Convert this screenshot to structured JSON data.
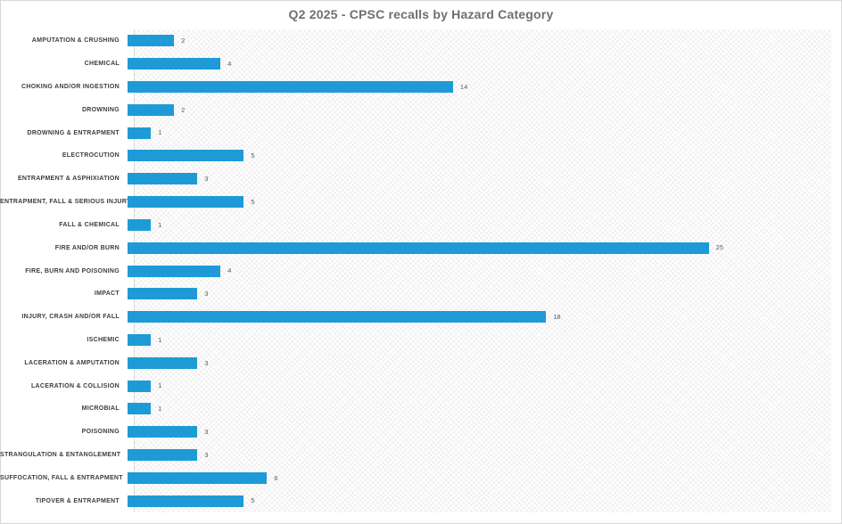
{
  "title": "Q2 2025 - CPSC recalls by Hazard Category",
  "colors": {
    "bar": "#1E9BD7",
    "title_text": "#6F6F6F",
    "axis_line": "#D9D9D9",
    "category_text": "#3D3D3D",
    "value_text": "#595959"
  },
  "chart_data": {
    "type": "bar",
    "orientation": "horizontal",
    "title": "Q2 2025 - CPSC recalls by Hazard Category",
    "xlabel": "",
    "ylabel": "",
    "xlim": [
      0,
      30
    ],
    "grid": false,
    "legend": false,
    "data_labels": true,
    "categories": [
      "AMPUTATION & CRUSHING",
      "CHEMICAL",
      "CHOKING AND/OR INGESTION",
      "DROWNING",
      "DROWNING & ENTRAPMENT",
      "ELECTROCUTION",
      "ENTRAPMENT & ASPHIXIATION",
      "ENTRAPMENT, FALL & SERIOUS INJURY",
      "FALL & CHEMICAL",
      "FIRE AND/OR BURN",
      "FIRE, BURN AND POISONING",
      "IMPACT",
      "INJURY, CRASH AND/OR FALL",
      "ISCHEMIC",
      "LACERATION & AMPUTATION",
      "LACERATION & COLLISION",
      "MICROBIAL",
      "POISONING",
      "STRANGULATION & ENTANGLEMENT",
      "SUFFOCATION, FALL & ENTRAPMENT",
      "TIPOVER & ENTRAPMENT"
    ],
    "values": [
      2,
      4,
      14,
      2,
      1,
      5,
      3,
      5,
      1,
      25,
      4,
      3,
      18,
      1,
      3,
      1,
      1,
      3,
      3,
      6,
      5
    ]
  }
}
